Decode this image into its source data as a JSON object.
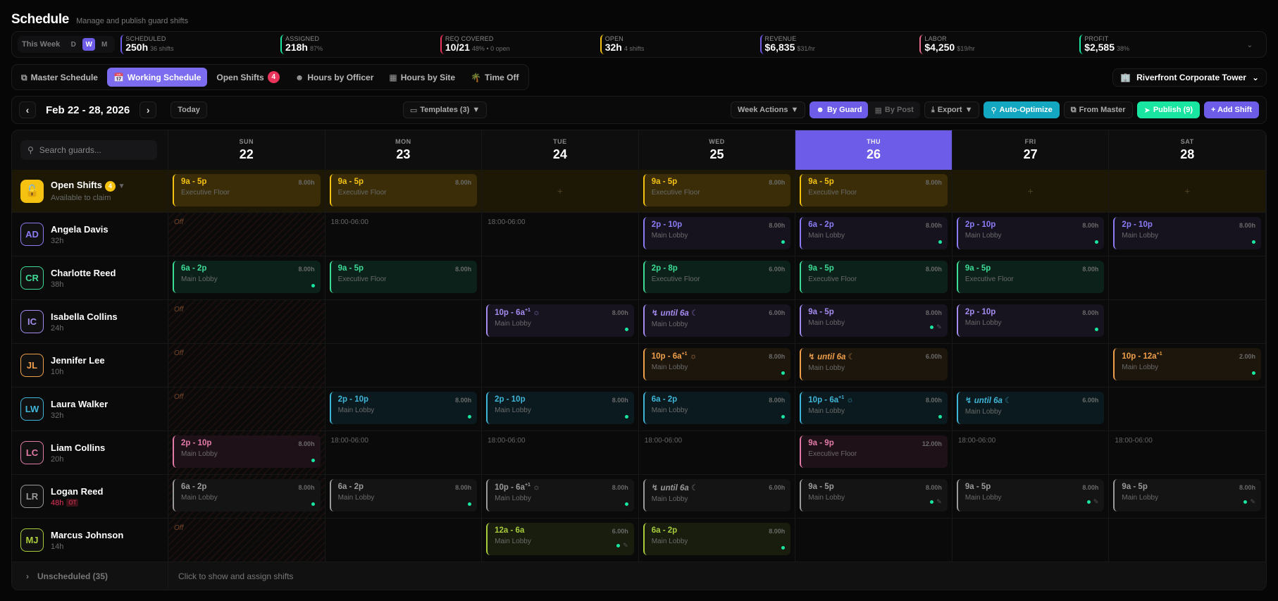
{
  "header": {
    "title": "Schedule",
    "subtitle": "Manage and publish guard shifts"
  },
  "range": {
    "label": "This Week",
    "options": [
      "D",
      "W",
      "M"
    ],
    "selected": "W"
  },
  "stats": [
    {
      "key": "SCHEDULED",
      "value": "250h",
      "sub": "36 shifts",
      "color": "#6c5ce7"
    },
    {
      "key": "ASSIGNED",
      "value": "218h",
      "sub": "87%",
      "color": "#19e6a0"
    },
    {
      "key": "REQ COVERED",
      "value": "10/21",
      "sub": "48% • 0 open",
      "color": "#e8335a"
    },
    {
      "key": "OPEN",
      "value": "32h",
      "sub": "4 shifts",
      "color": "#f5c211"
    },
    {
      "key": "REVENUE",
      "value": "$6,835",
      "sub": "$31/hr",
      "color": "#6c5ce7"
    },
    {
      "key": "LABOR",
      "value": "$4,250",
      "sub": "$19/hr",
      "color": "#e86a8a"
    },
    {
      "key": "PROFIT",
      "value": "$2,585",
      "sub": "38%",
      "color": "#19e6a0"
    }
  ],
  "tabs": [
    {
      "label": "Master Schedule",
      "icon": "copy-icon"
    },
    {
      "label": "Working Schedule",
      "icon": "calendar-icon",
      "active": true
    },
    {
      "label": "Open Shifts",
      "badge": "4"
    },
    {
      "label": "Hours by Officer",
      "icon": "user-icon"
    },
    {
      "label": "Hours by Site",
      "icon": "building-icon"
    },
    {
      "label": "Time Off",
      "icon": "palm-tree-icon"
    }
  ],
  "site": {
    "name": "Riverfront Corporate Tower"
  },
  "toolbar": {
    "date_range": "Feb 22 - 28, 2026",
    "today": "Today",
    "templates": "Templates (3)",
    "week_actions": "Week Actions",
    "by_guard": "By Guard",
    "by_post": "By Post",
    "export": "Export",
    "auto_optimize": "Auto-Optimize",
    "from_master": "From Master",
    "publish": "Publish (9)",
    "add_shift": "+ Add Shift"
  },
  "search": {
    "placeholder": "Search guards..."
  },
  "days": [
    {
      "name": "SUN",
      "date": "22"
    },
    {
      "name": "MON",
      "date": "23"
    },
    {
      "name": "TUE",
      "date": "24"
    },
    {
      "name": "WED",
      "date": "25"
    },
    {
      "name": "THU",
      "date": "26",
      "today": true
    },
    {
      "name": "FRI",
      "date": "27"
    },
    {
      "name": "SAT",
      "date": "28"
    }
  ],
  "open_shifts": {
    "title": "Open Shifts",
    "count": "4",
    "subtitle": "Available to claim",
    "cells": [
      {
        "time": "9a - 5p",
        "hours": "8.00h",
        "loc": "Executive Floor"
      },
      {
        "time": "9a - 5p",
        "hours": "8.00h",
        "loc": "Executive Floor"
      },
      null,
      {
        "time": "9a - 5p",
        "hours": "8.00h",
        "loc": "Executive Floor"
      },
      {
        "time": "9a - 5p",
        "hours": "8.00h",
        "loc": "Executive Floor"
      },
      null,
      null
    ]
  },
  "guards": [
    {
      "initials": "AD",
      "name": "Angela Davis",
      "hours": "32h",
      "color": "#8b7cf6",
      "bg": "#16131f",
      "cells": [
        {
          "off": "Off"
        },
        {
          "avail": "18:00-06:00"
        },
        {
          "avail": "18:00-06:00"
        },
        {
          "time": "2p - 10p",
          "hours": "8.00h",
          "loc": "Main Lobby",
          "dot": true
        },
        {
          "time": "6a - 2p",
          "hours": "8.00h",
          "loc": "Main Lobby",
          "dot": true
        },
        {
          "time": "2p - 10p",
          "hours": "8.00h",
          "loc": "Main Lobby",
          "dot": true
        },
        {
          "time": "2p - 10p",
          "hours": "8.00h",
          "loc": "Main Lobby",
          "dot": true
        }
      ]
    },
    {
      "initials": "CR",
      "name": "Charlotte Reed",
      "hours": "38h",
      "color": "#3ddc97",
      "bg": "#0b2119",
      "cells": [
        {
          "time": "6a - 2p",
          "hours": "8.00h",
          "loc": "Main Lobby",
          "dot": true
        },
        {
          "time": "9a - 5p",
          "hours": "8.00h",
          "loc": "Executive Floor"
        },
        null,
        {
          "time": "2p - 8p",
          "hours": "6.00h",
          "loc": "Executive Floor"
        },
        {
          "time": "9a - 5p",
          "hours": "8.00h",
          "loc": "Executive Floor"
        },
        {
          "time": "9a - 5p",
          "hours": "8.00h",
          "loc": "Executive Floor"
        },
        null
      ]
    },
    {
      "initials": "IC",
      "name": "Isabella Collins",
      "hours": "24h",
      "color": "#a58cf0",
      "bg": "#17131f",
      "cells": [
        {
          "off": "Off"
        },
        null,
        {
          "time": "10p - 6a",
          "sup": "+1",
          "sun": true,
          "hours": "8.00h",
          "loc": "Main Lobby",
          "dot": true
        },
        {
          "time": "until 6a",
          "cont": true,
          "moon": true,
          "hours": "6.00h",
          "loc": "Main Lobby"
        },
        {
          "time": "9a - 5p",
          "hours": "8.00h",
          "loc": "Main Lobby",
          "dot": true,
          "edit": true
        },
        {
          "time": "2p - 10p",
          "hours": "8.00h",
          "loc": "Main Lobby",
          "dot": true
        },
        null
      ]
    },
    {
      "initials": "JL",
      "name": "Jennifer Lee",
      "hours": "10h",
      "color": "#f0a04b",
      "bg": "#1d160c",
      "cells": [
        {
          "off": "Off"
        },
        null,
        null,
        {
          "time": "10p - 6a",
          "sup": "+1",
          "sun": true,
          "hours": "8.00h",
          "loc": "Main Lobby",
          "dot": true
        },
        {
          "time": "until 6a",
          "cont": true,
          "moon": true,
          "hours": "6.00h",
          "loc": "Main Lobby"
        },
        null,
        {
          "time": "10p - 12a",
          "sup": "+1",
          "hours": "2.00h",
          "loc": "Main Lobby",
          "dot": true
        }
      ]
    },
    {
      "initials": "LW",
      "name": "Laura Walker",
      "hours": "32h",
      "color": "#3fb6d8",
      "bg": "#0b1a1f",
      "cells": [
        {
          "off": "Off"
        },
        {
          "time": "2p - 10p",
          "hours": "8.00h",
          "loc": "Main Lobby",
          "dot": true
        },
        {
          "time": "2p - 10p",
          "hours": "8.00h",
          "loc": "Main Lobby",
          "dot": true
        },
        {
          "time": "6a - 2p",
          "hours": "8.00h",
          "loc": "Main Lobby",
          "dot": true
        },
        {
          "time": "10p - 6a",
          "sup": "+1",
          "sun": true,
          "hours": "8.00h",
          "loc": "Main Lobby",
          "dot": true
        },
        {
          "time": "until 6a",
          "cont": true,
          "moon": true,
          "hours": "6.00h",
          "loc": "Main Lobby"
        },
        null
      ]
    },
    {
      "initials": "LC",
      "name": "Liam Collins",
      "hours": "20h",
      "color": "#e37aa8",
      "bg": "#1f1118",
      "cells": [
        {
          "time": "2p - 10p",
          "hours": "8.00h",
          "loc": "Main Lobby",
          "dot": true,
          "offbg": true
        },
        {
          "avail": "18:00-06:00"
        },
        {
          "avail": "18:00-06:00"
        },
        {
          "avail": "18:00-06:00"
        },
        {
          "time": "9a - 9p",
          "hours": "12.00h",
          "loc": "Executive Floor"
        },
        {
          "avail": "18:00-06:00"
        },
        {
          "avail": "18:00-06:00"
        }
      ]
    },
    {
      "initials": "LR",
      "name": "Logan Reed",
      "hours": "48h",
      "ot": "OT",
      "color": "#9a9a9a",
      "bg": "#141414",
      "cells": [
        {
          "time": "6a - 2p",
          "hours": "8.00h",
          "loc": "Main Lobby",
          "dot": true,
          "offbg": true
        },
        {
          "time": "6a - 2p",
          "hours": "8.00h",
          "loc": "Main Lobby",
          "dot": true
        },
        {
          "time": "10p - 6a",
          "sup": "+1",
          "sun": true,
          "hours": "8.00h",
          "loc": "Main Lobby",
          "dot": true
        },
        {
          "time": "until 6a",
          "cont": true,
          "moon": true,
          "hours": "6.00h",
          "loc": "Main Lobby"
        },
        {
          "time": "9a - 5p",
          "hours": "8.00h",
          "loc": "Main Lobby",
          "dot": true,
          "edit": true
        },
        {
          "time": "9a - 5p",
          "hours": "8.00h",
          "loc": "Main Lobby",
          "dot": true,
          "edit": true
        },
        {
          "time": "9a - 5p",
          "hours": "8.00h",
          "loc": "Main Lobby",
          "dot": true,
          "edit": true
        }
      ]
    },
    {
      "initials": "MJ",
      "name": "Marcus Johnson",
      "hours": "14h",
      "color": "#a8cc3c",
      "bg": "#181d0d",
      "cells": [
        {
          "off": "Off"
        },
        null,
        {
          "time": "12a - 6a",
          "hours": "6.00h",
          "loc": "Main Lobby",
          "dot": true,
          "edit": true
        },
        {
          "time": "6a - 2p",
          "hours": "8.00h",
          "loc": "Main Lobby",
          "dot": true
        },
        null,
        null,
        null
      ]
    }
  ],
  "unscheduled": {
    "label": "Unscheduled (35)",
    "hint": "Click to show and assign shifts"
  }
}
